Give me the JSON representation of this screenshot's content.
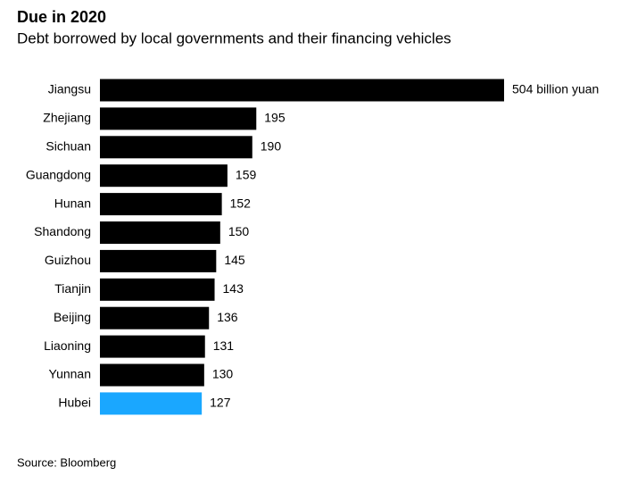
{
  "chart_data": {
    "type": "hbar",
    "title": "Due in 2020",
    "subtitle": "Debt borrowed by local governments and their financing vehicles",
    "categories": [
      "Jiangsu",
      "Zhejiang",
      "Sichuan",
      "Guangdong",
      "Hunan",
      "Shandong",
      "Guizhou",
      "Tianjin",
      "Beijing",
      "Liaoning",
      "Yunnan",
      "Hubei"
    ],
    "values": [
      504,
      195,
      190,
      159,
      152,
      150,
      145,
      143,
      136,
      131,
      130,
      127
    ],
    "value_labels": [
      "504 billion yuan",
      "195",
      "190",
      "159",
      "152",
      "150",
      "145",
      "143",
      "136",
      "131",
      "130",
      "127"
    ],
    "colors": [
      "#000000",
      "#000000",
      "#000000",
      "#000000",
      "#000000",
      "#000000",
      "#000000",
      "#000000",
      "#000000",
      "#000000",
      "#000000",
      "#1aa7ff"
    ],
    "source": "Source: Bloomberg"
  }
}
